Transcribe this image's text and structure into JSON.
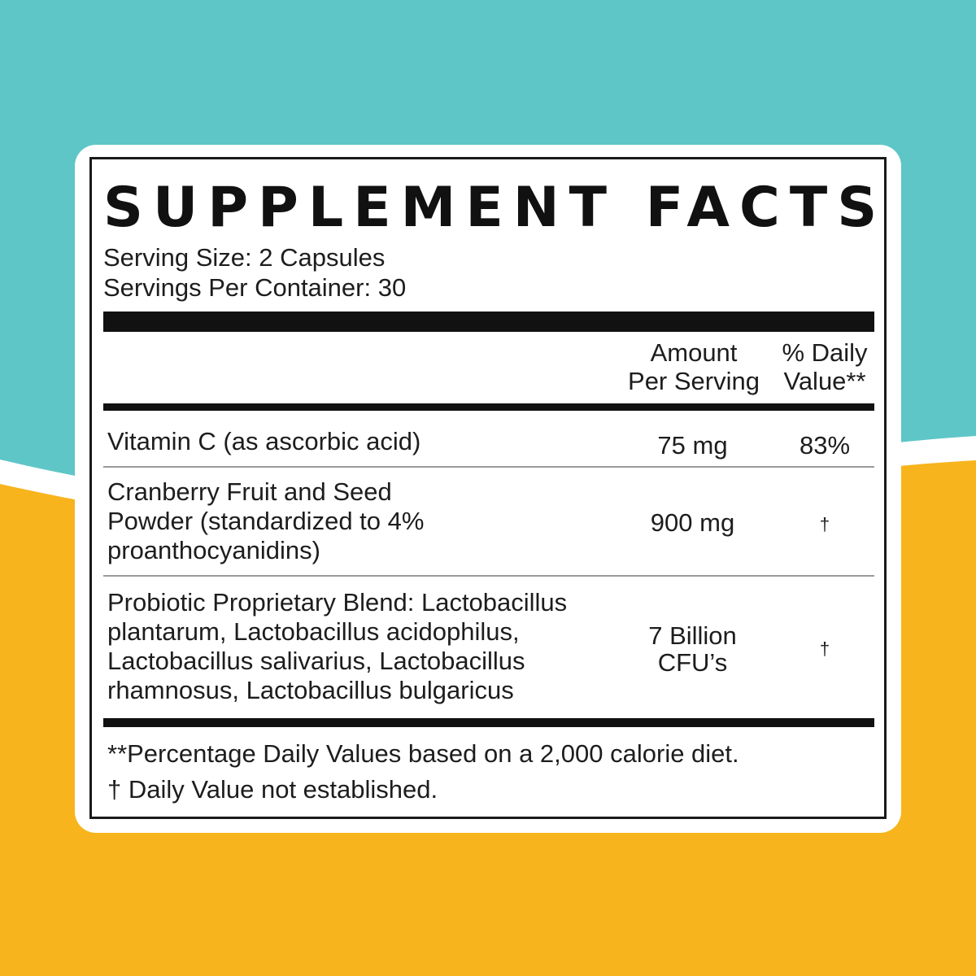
{
  "title": "SUPPLEMENT FACTS",
  "serving_size": "Serving Size: 2 Capsules",
  "servings_per_container": "Servings Per Container: 30",
  "columns": {
    "amount_line1": "Amount",
    "amount_line2": "Per Serving",
    "dv_line1": "% Daily",
    "dv_line2": "Value**"
  },
  "rows": [
    {
      "name_lines": [
        "Vitamin C (as ascorbic acid)"
      ],
      "amount_lines": [
        "75 mg"
      ],
      "daily_value": "83%"
    },
    {
      "name_lines": [
        "Cranberry Fruit and Seed",
        "Powder (standardized to 4%",
        "proanthocyanidins)"
      ],
      "amount_lines": [
        "900 mg"
      ],
      "daily_value": "†"
    },
    {
      "name_lines": [
        "Probiotic Proprietary Blend: Lactobacillus",
        "plantarum, Lactobacillus acidophilus,",
        "Lactobacillus salivarius, Lactobacillus",
        "rhamnosus, Lactobacillus bulgaricus"
      ],
      "amount_lines": [
        "7 Billion",
        "CFU’s"
      ],
      "daily_value": "†"
    }
  ],
  "footnotes": {
    "percent_note": "**Percentage Daily Values based on a 2,000 calorie diet.",
    "dagger_note": "† Daily Value not established."
  },
  "colors": {
    "background_top": "#5ec6c6",
    "background_bottom": "#f7b41c",
    "card": "#ffffff",
    "ink": "#1a1a1a"
  }
}
